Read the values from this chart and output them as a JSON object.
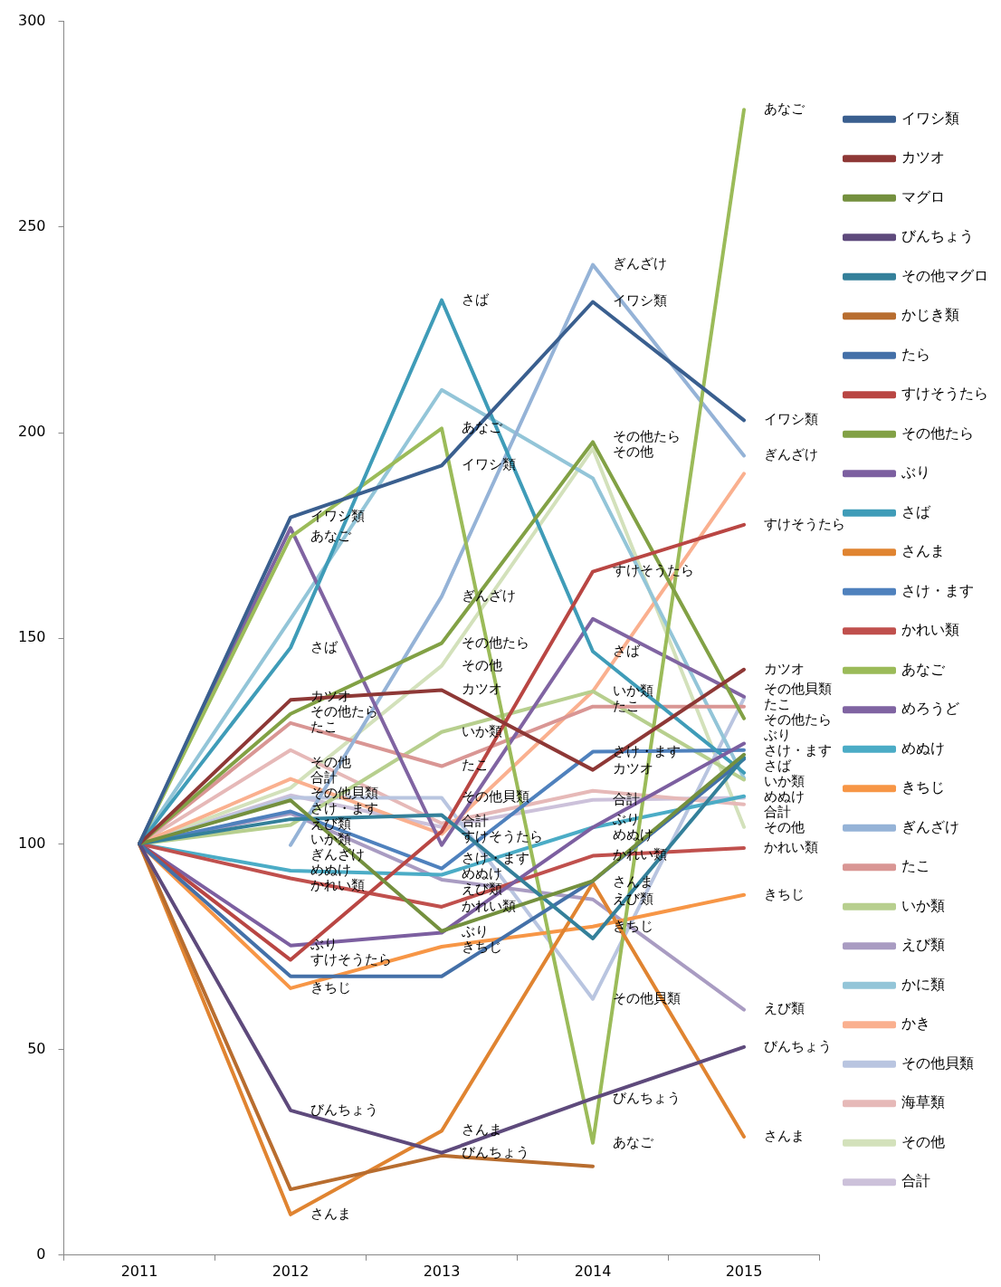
{
  "chart_data": {
    "type": "line",
    "categories": [
      "2011",
      "2012",
      "2013",
      "2014",
      "2015"
    ],
    "ylim": [
      0,
      300
    ],
    "yticks": [
      0,
      50,
      100,
      150,
      200,
      250,
      300
    ],
    "legend": "right",
    "marker": "none",
    "line_style": "solid",
    "series": [
      {
        "name": "イワシ類",
        "color": "#3a5f8f",
        "values": [
          100,
          179.4,
          192,
          231.8,
          203
        ],
        "value_labels": [
          null,
          "イワシ類",
          "イワシ類",
          "イワシ類",
          "イワシ類"
        ]
      },
      {
        "name": "カツオ",
        "color": "#8e3836",
        "values": [
          100,
          135,
          137.4,
          118,
          142.4
        ],
        "value_labels": [
          null,
          "カツオ",
          "カツオ",
          "カツオ",
          "カツオ"
        ]
      },
      {
        "name": "マグロ",
        "color": "#74903e",
        "values": [
          100,
          110.6,
          78.8,
          91,
          121.7
        ]
      },
      {
        "name": "びんちょう",
        "color": "#5e4a7c",
        "values": [
          100,
          35.2,
          24.9,
          38.1,
          50.6
        ],
        "value_labels": [
          null,
          "びんちょう",
          "びんちょう",
          "びんちょう",
          "びんちょう"
        ]
      },
      {
        "name": "その他マグロ",
        "color": "#34809a",
        "values": [
          100,
          106,
          107,
          77,
          121
        ]
      },
      {
        "name": "かじき類",
        "color": "#b86d2f",
        "values": [
          100,
          16,
          24.2,
          21.6,
          null
        ]
      },
      {
        "name": "たら",
        "color": "#4470a8",
        "values": [
          100,
          67.8,
          67.8,
          91,
          120.6
        ]
      },
      {
        "name": "すけそうたら",
        "color": "#b94643",
        "values": [
          100,
          71.8,
          103,
          166.2,
          177.6
        ],
        "value_labels": [
          null,
          "すけそうたら",
          "すけそうたら",
          "すけそうたら",
          "すけそうたら"
        ]
      },
      {
        "name": "その他たら",
        "color": "#82a145",
        "values": [
          100,
          131.6,
          148.8,
          197.7,
          130.5
        ],
        "value_labels": [
          null,
          "その他たら",
          "その他たら",
          "その他たら",
          "その他たら"
        ]
      },
      {
        "name": "ぶり",
        "color": "#7c5fa0",
        "values": [
          100,
          75.3,
          78.4,
          104,
          124.4
        ],
        "value_labels": [
          null,
          "ぶり",
          "ぶり",
          "ぶり",
          "ぶり"
        ]
      },
      {
        "name": "さば",
        "color": "#3f9cb8",
        "values": [
          100,
          147.7,
          232.2,
          146.8,
          117.3
        ],
        "value_labels": [
          null,
          "さば",
          "さば",
          "さば",
          "さば"
        ]
      },
      {
        "name": "さんま",
        "color": "#e08431",
        "values": [
          100,
          9.9,
          30.2,
          90.5,
          28.8
        ],
        "value_labels": [
          null,
          "さんま",
          "さんま",
          "さんま",
          "さんま"
        ]
      },
      {
        "name": "さけ・ます",
        "color": "#4f81bd",
        "values": [
          100,
          107.9,
          94,
          122.4,
          122.8
        ],
        "value_labels": [
          null,
          "さけ・ます",
          "さけ・ます",
          "さけ・ます",
          "さけ・ます"
        ]
      },
      {
        "name": "かれい類",
        "color": "#c0504d",
        "values": [
          100,
          91.6,
          84.7,
          97.1,
          99
        ],
        "value_labels": [
          null,
          "かれい類",
          "かれい類",
          "かれい類",
          "かれい類"
        ]
      },
      {
        "name": "あなご",
        "color": "#9bbb59",
        "values": [
          100,
          174.6,
          201,
          27.3,
          278.5
        ],
        "value_labels": [
          null,
          "あなご",
          "あなご",
          "あなご",
          "あなご"
        ]
      },
      {
        "name": "めろうど",
        "color": "#8064a2",
        "values": [
          100,
          176.8,
          99.7,
          154.7,
          135.8
        ]
      },
      {
        "name": "めぬけ",
        "color": "#4bacc6",
        "values": [
          100,
          93.5,
          92.5,
          104,
          111.6
        ],
        "value_labels": [
          null,
          "めぬけ",
          "めぬけ",
          "めぬけ",
          "めぬけ"
        ]
      },
      {
        "name": "きちじ",
        "color": "#f79646",
        "values": [
          100,
          64.9,
          75,
          79.9,
          87.6
        ],
        "value_labels": [
          null,
          "きちじ",
          "きちじ",
          "きちじ",
          "きちじ"
        ]
      },
      {
        "name": "ぎんざけ",
        "color": "#95b3d7",
        "values": [
          null,
          99.7,
          160.2,
          240.8,
          194.4
        ],
        "value_labels": [
          null,
          "ぎんざけ",
          "ぎんざけ",
          "ぎんざけ",
          "ぎんざけ"
        ]
      },
      {
        "name": "たこ",
        "color": "#d99694",
        "values": [
          100,
          129.4,
          118.9,
          133.4,
          133.4
        ],
        "value_labels": [
          null,
          "たこ",
          "たこ",
          "たこ",
          "たこ"
        ]
      },
      {
        "name": "いか類",
        "color": "#b7cf8e",
        "values": [
          100,
          104.6,
          127.2,
          137.1,
          115.6
        ],
        "value_labels": [
          null,
          "いか類",
          "いか類",
          "いか類",
          "いか類"
        ]
      },
      {
        "name": "えび類",
        "color": "#a99cc2",
        "values": [
          100,
          107.4,
          91.3,
          86.5,
          59.7
        ],
        "value_labels": [
          null,
          "えび類",
          "えび類",
          "えび類",
          "えび類"
        ]
      },
      {
        "name": "かに類",
        "color": "#93c5d8",
        "values": [
          100,
          154.7,
          210.4,
          188.9,
          116
        ]
      },
      {
        "name": "かき",
        "color": "#fab08f",
        "values": [
          100,
          115.8,
          102.4,
          137.1,
          190
        ]
      },
      {
        "name": "その他貝類",
        "color": "#b9c5e0",
        "values": [
          100,
          111.2,
          111.2,
          62.3,
          135.4
        ],
        "value_labels": [
          null,
          "その他貝類",
          "その他貝類",
          "その他貝類",
          "その他貝類"
        ]
      },
      {
        "name": "海草類",
        "color": "#e6b9b8",
        "values": [
          100,
          122.8,
          105,
          112.9,
          109.6
        ]
      },
      {
        "name": "その他",
        "color": "#d3e1bb",
        "values": [
          100,
          113.6,
          143.3,
          196.1,
          104.1
        ],
        "value_labels": [
          null,
          "その他",
          "その他",
          "その他",
          "その他"
        ]
      },
      {
        "name": "合計",
        "color": "#ccc1da",
        "values": [
          100,
          111.8,
          104.1,
          110.7,
          111.2
        ],
        "value_labels": [
          null,
          "合計",
          "合計",
          "合計",
          "合計"
        ]
      }
    ]
  }
}
